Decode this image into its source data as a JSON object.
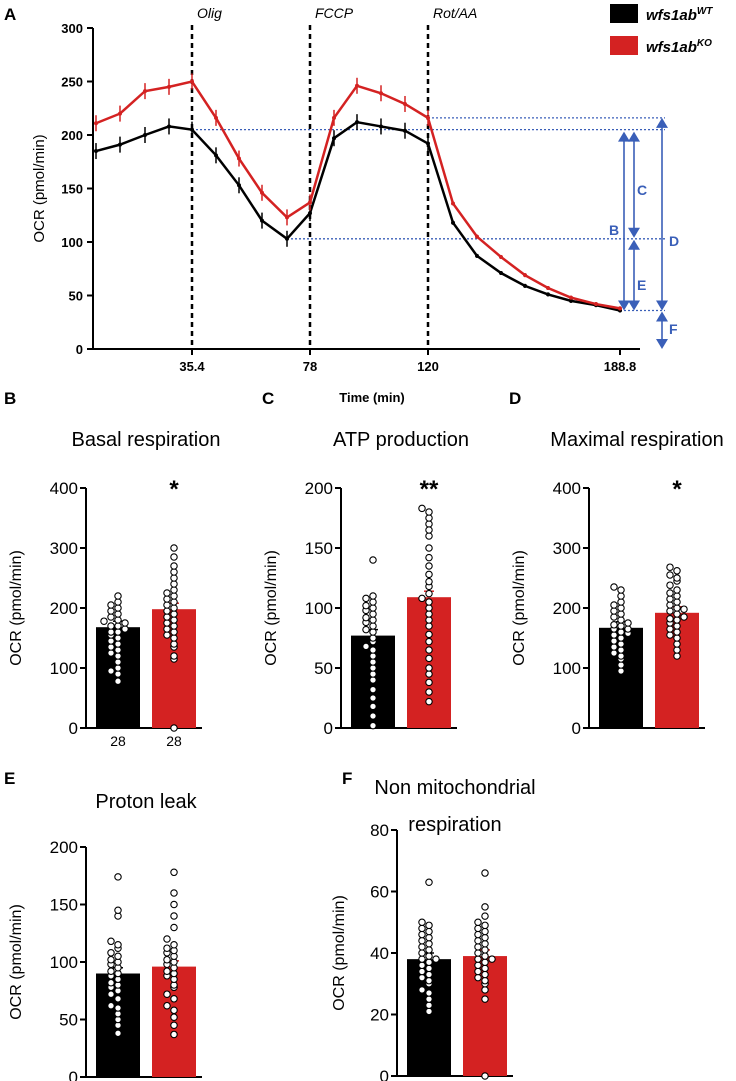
{
  "colors": {
    "wt": "#000000",
    "ko": "#d42222",
    "guide": "#3a5fb8"
  },
  "legend": [
    {
      "base": "wfs1ab",
      "sup": "WT",
      "color": "#000000"
    },
    {
      "base": "wfs1ab",
      "sup": "KO",
      "color": "#d42222"
    }
  ],
  "panel_letters": {
    "a": "A",
    "b": "B",
    "c": "C",
    "d": "D",
    "e": "E",
    "f": "F"
  },
  "chart_data": [
    {
      "id": "A",
      "type": "line",
      "xlabel": "Time (min)",
      "ylabel": "OCR (pmol/min)",
      "ylim": [
        0,
        300
      ],
      "yticks": [
        "0",
        "50",
        "100",
        "150",
        "200",
        "250",
        "300"
      ],
      "xticks": [
        "35.4",
        "78",
        "120",
        "188.8"
      ],
      "injections": [
        "Olig",
        "FCCP",
        "Rot/AA"
      ],
      "segments": [
        "B",
        "C",
        "D",
        "E",
        "F"
      ],
      "series": [
        {
          "name": "wfs1ab WT",
          "values": [
            185,
            191,
            200,
            208,
            205,
            181,
            153,
            120,
            103,
            127,
            197,
            212,
            208,
            204,
            192,
            118,
            87,
            71,
            59,
            51,
            45,
            41,
            36
          ]
        },
        {
          "name": "wfs1ab KO",
          "values": [
            211,
            220,
            241,
            245,
            250,
            216,
            178,
            146,
            123,
            137,
            216,
            246,
            239,
            229,
            216,
            136,
            105,
            86,
            69,
            57,
            48,
            42,
            38
          ]
        }
      ]
    },
    {
      "id": "B",
      "type": "bar",
      "title": "Basal respiration",
      "ylabel": "OCR (pmol/min)",
      "ylim": [
        0,
        400
      ],
      "yticks": [
        "0",
        "100",
        "200",
        "300",
        "400"
      ],
      "categories": [
        "28",
        "28"
      ],
      "values": [
        168,
        198
      ],
      "significance": "*",
      "points": [
        [
          78,
          90,
          95,
          100,
          110,
          120,
          125,
          130,
          135,
          140,
          145,
          150,
          155,
          160,
          160,
          165,
          170,
          170,
          175,
          178,
          180,
          185,
          190,
          195,
          200,
          205,
          210,
          220
        ],
        [
          0,
          115,
          120,
          135,
          140,
          150,
          155,
          160,
          165,
          170,
          175,
          180,
          185,
          190,
          195,
          200,
          205,
          210,
          215,
          220,
          225,
          230,
          240,
          250,
          260,
          270,
          285,
          300
        ]
      ]
    },
    {
      "id": "C",
      "type": "bar",
      "title": "ATP production",
      "ylabel": "OCR (pmol/min)",
      "ylim": [
        0,
        200
      ],
      "yticks": [
        "0",
        "50",
        "100",
        "150",
        "200"
      ],
      "values": [
        77,
        109
      ],
      "significance": "**",
      "points": [
        [
          2,
          10,
          18,
          25,
          32,
          40,
          45,
          50,
          55,
          60,
          65,
          68,
          72,
          75,
          80,
          82,
          85,
          88,
          90,
          92,
          95,
          98,
          100,
          102,
          105,
          108,
          110,
          140
        ],
        [
          22,
          30,
          38,
          45,
          50,
          58,
          65,
          72,
          78,
          85,
          90,
          95,
          100,
          105,
          108,
          112,
          118,
          122,
          128,
          135,
          142,
          150,
          160,
          170,
          175,
          180,
          183,
          165
        ]
      ]
    },
    {
      "id": "D",
      "type": "bar",
      "title": "Maximal respiration",
      "ylabel": "OCR (pmol/min)",
      "ylim": [
        0,
        400
      ],
      "yticks": [
        "0",
        "100",
        "200",
        "300",
        "400"
      ],
      "values": [
        167,
        192
      ],
      "significance": "*",
      "points": [
        [
          95,
          105,
          115,
          120,
          125,
          130,
          135,
          140,
          145,
          150,
          155,
          158,
          160,
          165,
          165,
          170,
          172,
          175,
          180,
          185,
          190,
          195,
          200,
          205,
          210,
          220,
          230,
          235
        ],
        [
          120,
          130,
          140,
          150,
          155,
          160,
          165,
          170,
          175,
          180,
          182,
          185,
          190,
          195,
          198,
          200,
          205,
          210,
          215,
          220,
          225,
          230,
          238,
          245,
          250,
          255,
          262,
          268
        ]
      ]
    },
    {
      "id": "E",
      "type": "bar",
      "title": "Proton leak",
      "ylabel": "OCR (pmol/min)",
      "ylim": [
        0,
        200
      ],
      "yticks": [
        "0",
        "50",
        "100",
        "150",
        "200"
      ],
      "values": [
        90,
        96
      ],
      "points": [
        [
          38,
          45,
          50,
          55,
          60,
          62,
          68,
          72,
          75,
          78,
          80,
          82,
          85,
          88,
          90,
          92,
          95,
          98,
          100,
          102,
          105,
          108,
          112,
          115,
          118,
          140,
          145,
          174
        ],
        [
          37,
          45,
          52,
          58,
          62,
          68,
          72,
          78,
          80,
          85,
          88,
          90,
          92,
          95,
          98,
          100,
          102,
          105,
          108,
          110,
          112,
          115,
          120,
          130,
          140,
          150,
          160,
          178
        ]
      ]
    },
    {
      "id": "F",
      "type": "bar",
      "title_lines": [
        "Non mitochondrial",
        "respiration"
      ],
      "ylabel": "OCR (pmol/min)",
      "ylim": [
        0,
        80
      ],
      "yticks": [
        "0",
        "20",
        "40",
        "60",
        "80"
      ],
      "values": [
        38,
        39
      ],
      "points": [
        [
          21,
          23,
          25,
          27,
          28,
          30,
          31,
          32,
          33,
          34,
          35,
          36,
          37,
          38,
          38,
          39,
          40,
          41,
          42,
          43,
          44,
          45,
          46,
          47,
          48,
          49,
          50,
          63
        ],
        [
          0,
          25,
          28,
          30,
          31,
          32,
          33,
          34,
          35,
          36,
          37,
          38,
          38,
          39,
          40,
          41,
          42,
          43,
          44,
          45,
          46,
          47,
          48,
          49,
          50,
          52,
          55,
          66
        ]
      ]
    }
  ]
}
